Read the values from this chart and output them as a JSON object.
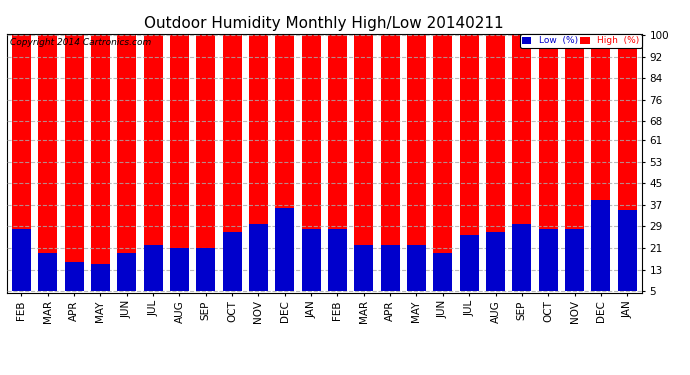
{
  "title": "Outdoor Humidity Monthly High/Low 20140211",
  "copyright": "Copyright 2014 Cartronics.com",
  "months": [
    "FEB",
    "MAR",
    "APR",
    "MAY",
    "JUN",
    "JUL",
    "AUG",
    "SEP",
    "OCT",
    "NOV",
    "DEC",
    "JAN",
    "FEB",
    "MAR",
    "APR",
    "MAY",
    "JUN",
    "JUL",
    "AUG",
    "SEP",
    "OCT",
    "NOV",
    "DEC",
    "JAN"
  ],
  "high_values": [
    100,
    100,
    100,
    100,
    100,
    100,
    100,
    100,
    100,
    100,
    100,
    100,
    100,
    100,
    100,
    100,
    100,
    100,
    100,
    100,
    100,
    100,
    100,
    100
  ],
  "low_values": [
    28,
    19,
    16,
    15,
    19,
    22,
    21,
    21,
    27,
    30,
    36,
    28,
    28,
    22,
    22,
    22,
    19,
    26,
    27,
    30,
    28,
    28,
    39,
    35
  ],
  "high_color": "#ff0000",
  "low_color": "#0000cc",
  "bg_color": "#ffffff",
  "plot_bg_color": "#ffffff",
  "yticks": [
    5,
    13,
    21,
    29,
    37,
    45,
    53,
    61,
    68,
    76,
    84,
    92,
    100
  ],
  "ymin": 5,
  "ymax": 100,
  "legend_low_label": "Low  (%)",
  "legend_high_label": "High  (%)",
  "title_fontsize": 11,
  "tick_fontsize": 7.5,
  "grid_color": "#aaaaaa",
  "grid_style": "--",
  "grid_alpha": 0.8
}
